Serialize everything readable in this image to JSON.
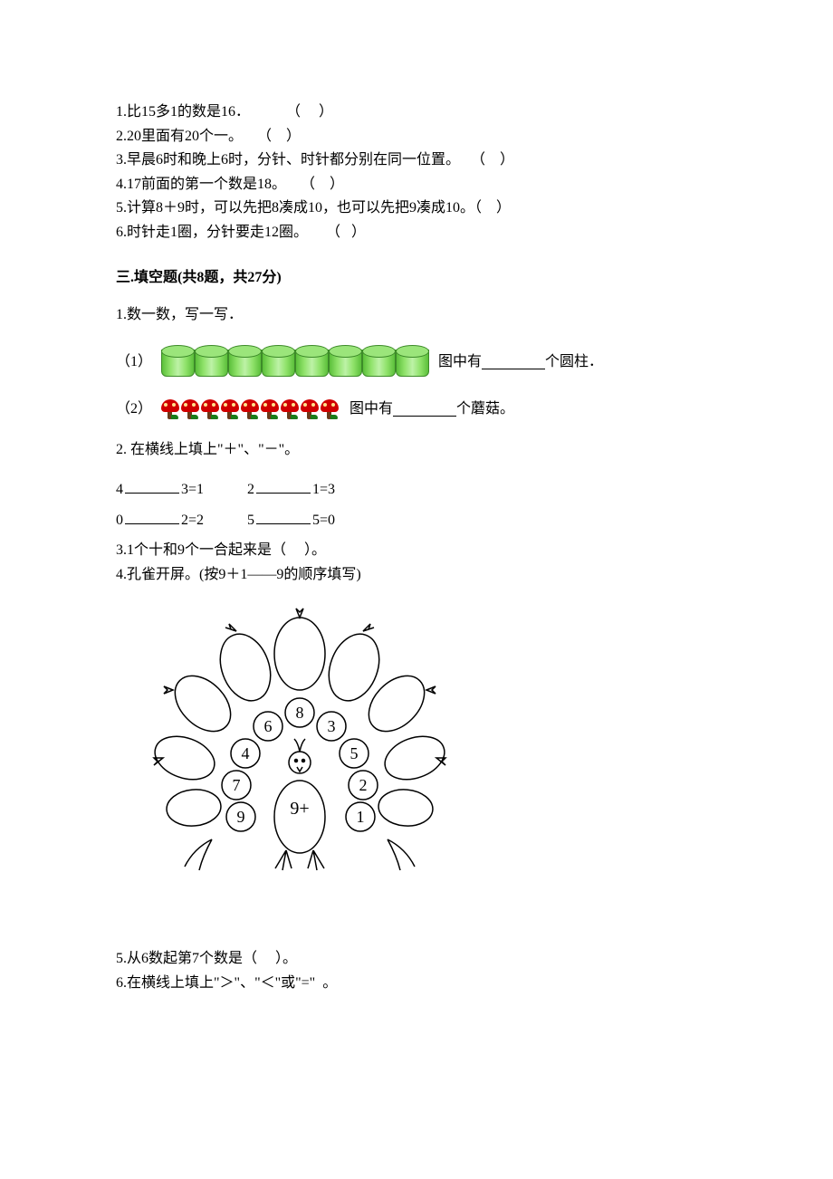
{
  "judgment": {
    "items": [
      "1.比15多1的数是16．          （     ）",
      "2.20里面有20个一。    （    ）",
      "3.早晨6时和晚上6时，分针、时针都分别在同一位置。   （    ）",
      "4.17前面的第一个数是18。    （    ）",
      "5.计算8＋9时，可以先把8凑成10，也可以先把9凑成10。（    ）",
      "6.时针走1圈，分针要走12圈。     （   ）"
    ]
  },
  "section3": {
    "heading": "三.填空题(共8题，共27分)",
    "q1": {
      "stem": "1.数一数，写一写．",
      "sub1_label": "（1）",
      "sub1_after": "图中有",
      "sub1_tail": "个圆柱．",
      "cylinder_count": 8,
      "sub2_label": "（2）",
      "sub2_after": "图中有",
      "sub2_tail": "个蘑菇。",
      "mushroom_count": 9
    },
    "q2": {
      "stem": "2.  在横线上填上\"＋\"、\"－\"。",
      "eqs_row1": [
        {
          "l": "4",
          "r": "3=1"
        },
        {
          "l": "2",
          "r": "1=3"
        }
      ],
      "eqs_row2": [
        {
          "l": "0",
          "r": "2=2"
        },
        {
          "l": "5",
          "r": "5=0"
        }
      ]
    },
    "q3": "3.1个十和9个一合起来是（     ）。",
    "q4": "4.孔雀开屏。(按9＋1——9的顺序填写)",
    "peacock": {
      "center": "9+",
      "circles": [
        "9",
        "7",
        "4",
        "6",
        "8",
        "3",
        "5",
        "2",
        "1"
      ]
    },
    "q5": "5.从6数起第7个数是（     ）。",
    "q6": "6.在横线上填上\"＞\"、\"＜\"或\"=\"  。"
  },
  "colors": {
    "cylinder_fill": "#8fe26a",
    "cylinder_border": "#3d8b29",
    "mushroom_cap": "#d00000",
    "mushroom_dot": "#ffe28a",
    "mushroom_stem": "#6b3b1a",
    "mushroom_leaf": "#1a7d1a",
    "peacock_stroke": "#000000",
    "background": "#ffffff"
  }
}
